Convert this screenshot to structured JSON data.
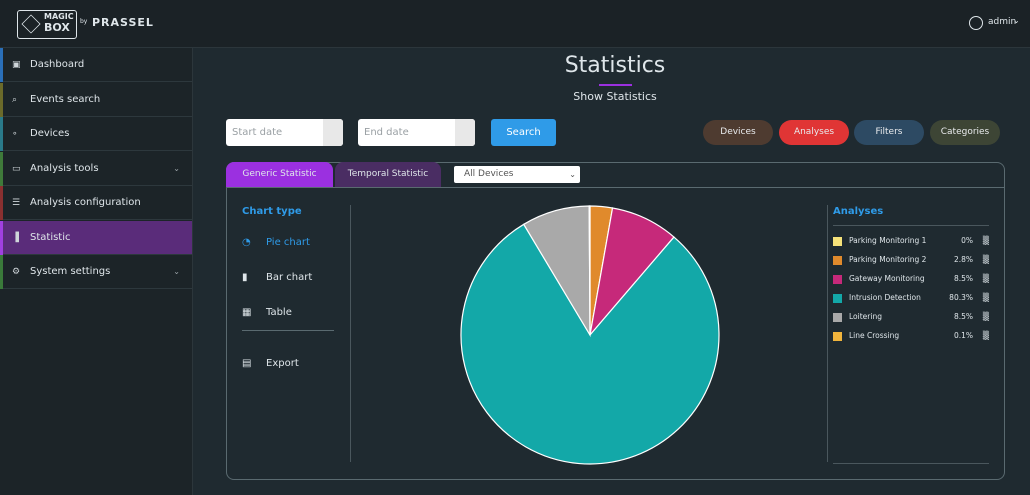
{
  "header": {
    "logo": [
      "MAGIC",
      "BOX"
    ],
    "by": "by",
    "brand": "PRASSEL",
    "user": "admin"
  },
  "sidebar": {
    "items": [
      "Dashboard",
      "Events search",
      "Devices",
      "Analysis tools",
      "Analysis configuration",
      "Statistic",
      "System settings"
    ]
  },
  "page": {
    "title": "Statistics",
    "subtitle": "Show Statistics"
  },
  "filters": {
    "start_date": "Start date",
    "end_date": "End date",
    "search": "Search",
    "buttons": [
      "Devices",
      "Analyses",
      "Filters",
      "Categories"
    ]
  },
  "tabs": [
    "Generic Statistic",
    "Temporal Statistic"
  ],
  "device_select": "All Devices",
  "chart_type": {
    "title": "Chart type",
    "options": [
      "Pie chart",
      "Bar chart",
      "Table"
    ],
    "export": "Export"
  },
  "chart_data": {
    "type": "pie",
    "title": "Analyses",
    "categories": [
      "Parking Monitoring 1",
      "Parking Monitoring 2",
      "Gateway Monitoring",
      "Intrusion Detection",
      "Loitering",
      "Line Crossing"
    ],
    "values": [
      0,
      2.8,
      8.5,
      80.3,
      8.5,
      0.1
    ],
    "value_labels": [
      "0%",
      "2.8%",
      "8.5%",
      "80.3%",
      "8.5%",
      "0.1%"
    ],
    "colors": [
      "#f6e27a",
      "#e08a2c",
      "#c6297a",
      "#13a8a8",
      "#a9a9a9",
      "#f0b43c"
    ]
  }
}
